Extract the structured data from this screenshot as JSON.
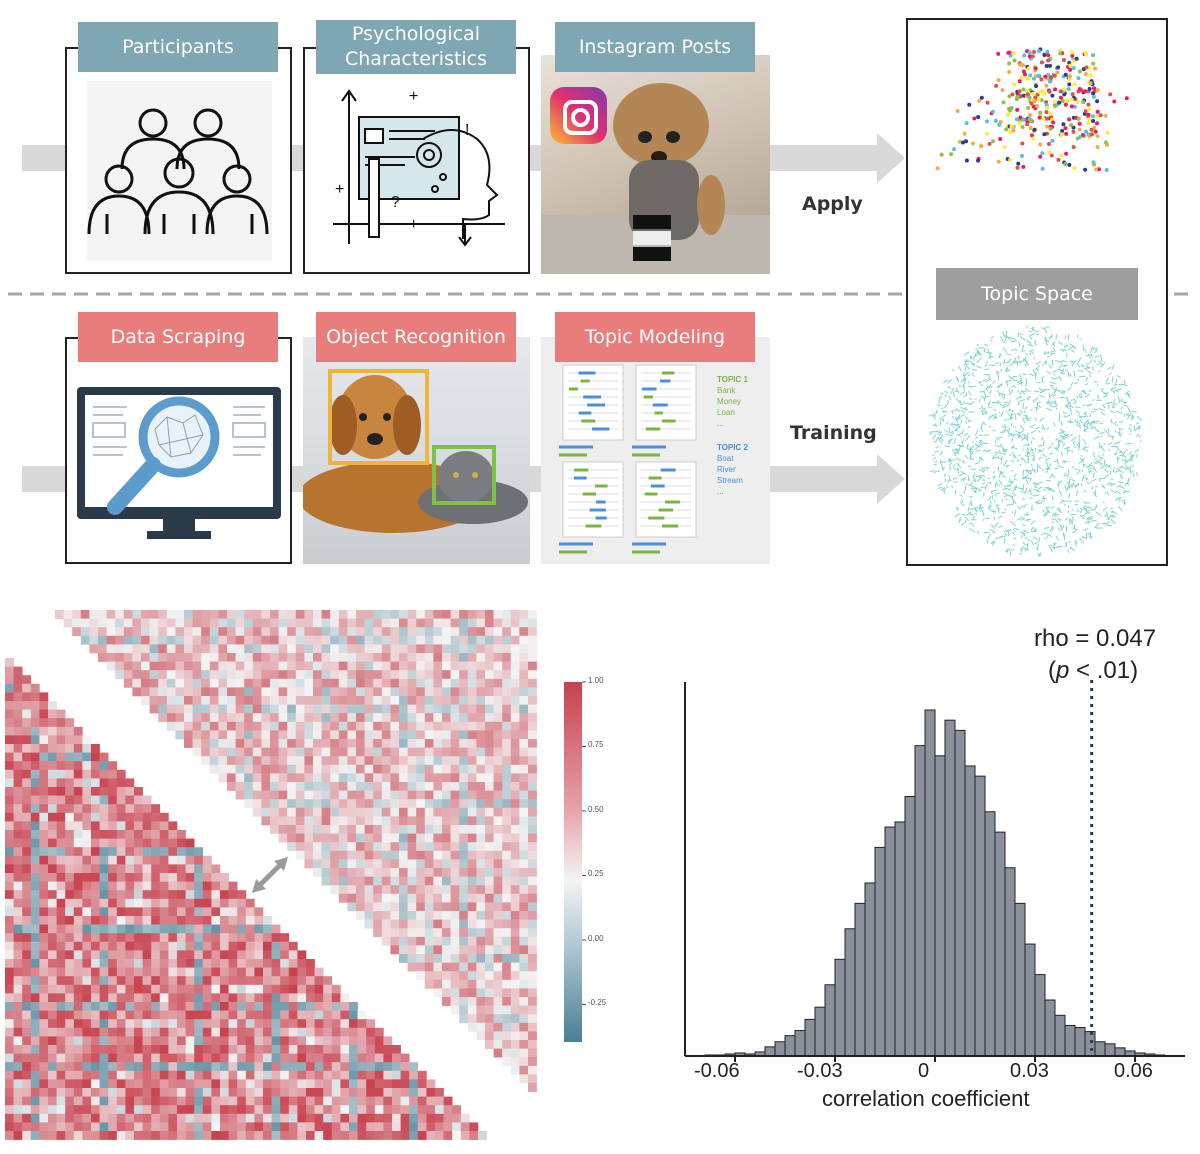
{
  "pipeline": {
    "top_row": {
      "participants_label": "Participants",
      "psych_label_line1": "Psychological",
      "psych_label_line2": "Characteristics",
      "instagram_label": "Instagram Posts",
      "apply_label": "Apply"
    },
    "bottom_row": {
      "scraping_label": "Data Scraping",
      "recognition_label": "Object Recognition",
      "topic_modeling_label": "Topic Modeling",
      "training_label": "Training",
      "topic_doc": {
        "topic1_title": "TOPIC 1",
        "topic1_words": [
          "Bank",
          "Money",
          "Loan",
          "..."
        ],
        "topic2_title": "TOPIC 2",
        "topic2_words": [
          "Boat",
          "River",
          "Stream",
          "..."
        ]
      }
    },
    "topic_space_label": "Topic Space"
  },
  "colors": {
    "teal_tag": "#7fa6b3",
    "red_tag": "#e87d7c",
    "grey_tag": "#9e9e9e",
    "arrow": "#d9d9d9",
    "heat_high": "#c8414e",
    "heat_low": "#4a7f94",
    "histogram_fill": "#8a919c"
  },
  "heatmap": {
    "colorbar_ticks": [
      "1.00",
      "0.75",
      "0.50",
      "0.25",
      "0.00",
      "-0.25"
    ]
  },
  "chart_data": {
    "type": "bar",
    "title": "",
    "xlabel": "correlation coefficient",
    "ylabel": "",
    "xlim": [
      -0.075,
      0.075
    ],
    "x_ticks": [
      "-0.06",
      "-0.03",
      "0",
      "0.03",
      "0.06"
    ],
    "bin_width": 0.003,
    "bin_starts": [
      -0.069,
      -0.066,
      -0.063,
      -0.06,
      -0.057,
      -0.054,
      -0.051,
      -0.048,
      -0.045,
      -0.042,
      -0.039,
      -0.036,
      -0.033,
      -0.03,
      -0.027,
      -0.024,
      -0.021,
      -0.018,
      -0.015,
      -0.012,
      -0.009,
      -0.006,
      -0.003,
      0.0,
      0.003,
      0.006,
      0.009,
      0.012,
      0.015,
      0.018,
      0.021,
      0.024,
      0.027,
      0.03,
      0.033,
      0.036,
      0.039,
      0.042,
      0.045,
      0.048,
      0.051,
      0.054,
      0.057,
      0.06,
      0.063,
      0.066
    ],
    "counts": [
      1,
      1,
      2,
      3,
      2,
      4,
      9,
      14,
      20,
      25,
      36,
      48,
      70,
      95,
      125,
      150,
      170,
      205,
      225,
      230,
      255,
      305,
      340,
      295,
      330,
      320,
      285,
      275,
      240,
      220,
      185,
      150,
      110,
      80,
      55,
      40,
      30,
      28,
      24,
      14,
      12,
      8,
      5,
      3,
      2,
      1
    ],
    "reference_line": {
      "x": 0.047,
      "label_line1": "rho = 0.047",
      "label_line2_italic": "p",
      "label_line2_rest": " < .01)",
      "label_line2_open": "("
    }
  }
}
